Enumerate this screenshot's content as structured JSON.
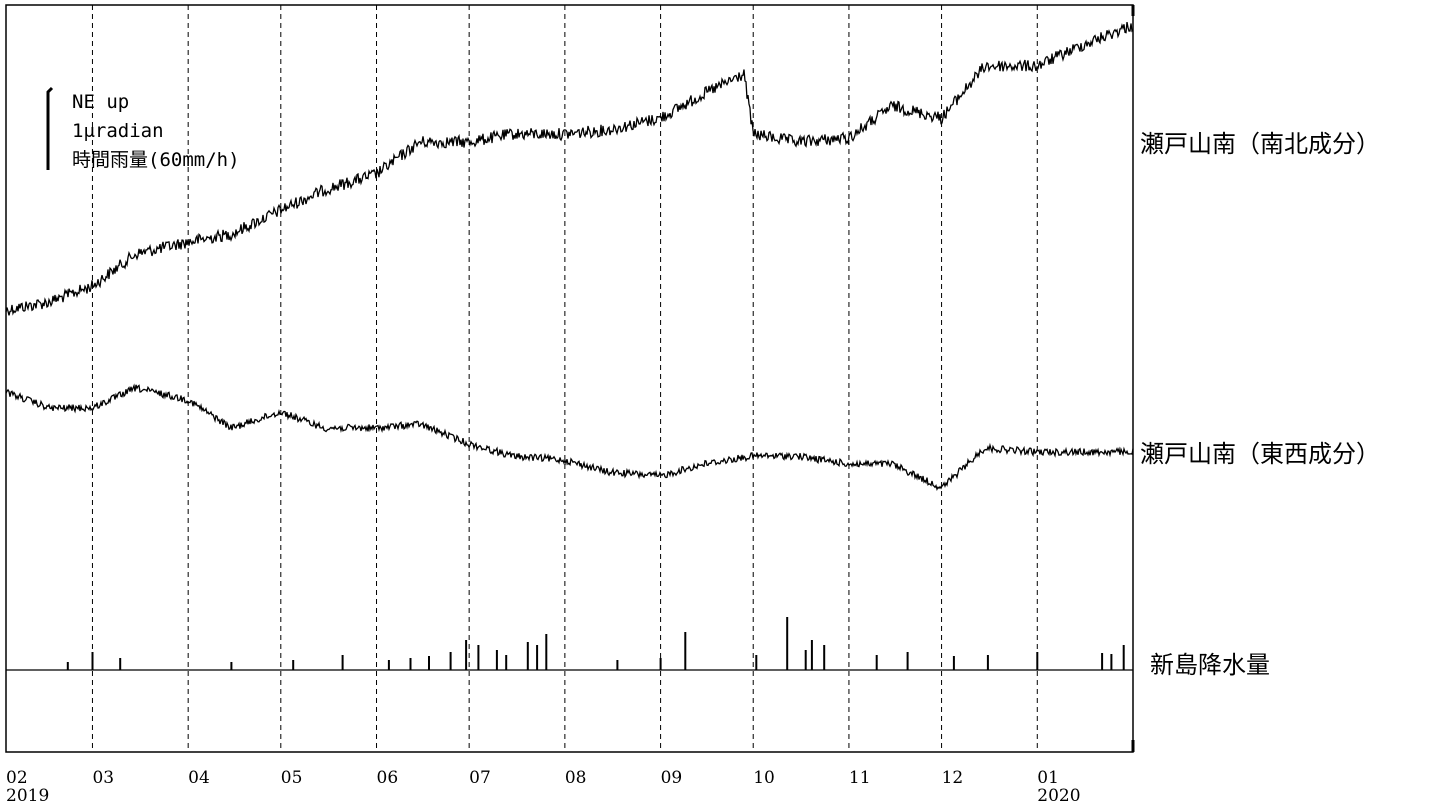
{
  "chart_data": {
    "type": "line",
    "legend": {
      "direction": "NE up",
      "scale": "1μradian",
      "rain_scale": "時間雨量(60mm/h)"
    },
    "x_ticks": [
      {
        "month": "02",
        "year": "2019"
      },
      {
        "month": "03",
        "year": ""
      },
      {
        "month": "04",
        "year": ""
      },
      {
        "month": "05",
        "year": ""
      },
      {
        "month": "06",
        "year": ""
      },
      {
        "month": "07",
        "year": ""
      },
      {
        "month": "08",
        "year": ""
      },
      {
        "month": "09",
        "year": ""
      },
      {
        "month": "10",
        "year": ""
      },
      {
        "month": "11",
        "year": ""
      },
      {
        "month": "12",
        "year": ""
      },
      {
        "month": "01",
        "year": "2020"
      }
    ],
    "grid": "vertical dashed at month boundaries",
    "series": [
      {
        "name": "瀬戸山南（南北成分）",
        "unit": "μradian",
        "x": [
          "2019-02-01",
          "2019-02-15",
          "2019-03-01",
          "2019-03-15",
          "2019-04-01",
          "2019-04-15",
          "2019-05-01",
          "2019-05-15",
          "2019-06-01",
          "2019-06-15",
          "2019-07-01",
          "2019-07-15",
          "2019-08-01",
          "2019-08-15",
          "2019-09-01",
          "2019-09-15",
          "2019-09-28",
          "2019-10-01",
          "2019-10-15",
          "2019-11-01",
          "2019-11-15",
          "2019-12-01",
          "2019-12-15",
          "2020-01-01",
          "2020-01-15",
          "2020-01-31"
        ],
        "values": [
          0.0,
          0.1,
          0.3,
          0.7,
          0.85,
          0.95,
          1.25,
          1.5,
          1.7,
          2.1,
          2.1,
          2.2,
          2.2,
          2.25,
          2.4,
          2.7,
          2.95,
          2.2,
          2.1,
          2.15,
          2.55,
          2.4,
          3.05,
          3.05,
          3.3,
          3.55
        ]
      },
      {
        "name": "瀬戸山南（東西成分）",
        "unit": "μradian",
        "x": [
          "2019-02-01",
          "2019-02-15",
          "2019-03-01",
          "2019-03-15",
          "2019-04-01",
          "2019-04-15",
          "2019-05-01",
          "2019-05-15",
          "2019-06-01",
          "2019-06-15",
          "2019-07-01",
          "2019-07-15",
          "2019-08-01",
          "2019-08-15",
          "2019-09-01",
          "2019-09-15",
          "2019-10-01",
          "2019-10-15",
          "2019-11-01",
          "2019-11-15",
          "2019-12-01",
          "2019-12-15",
          "2020-01-01",
          "2020-01-15",
          "2020-01-31"
        ],
        "values": [
          0.0,
          -0.2,
          -0.2,
          0.05,
          -0.1,
          -0.45,
          -0.25,
          -0.45,
          -0.45,
          -0.4,
          -0.65,
          -0.8,
          -0.85,
          -1.0,
          -1.05,
          -0.9,
          -0.8,
          -0.8,
          -0.9,
          -0.9,
          -1.2,
          -0.7,
          -0.75,
          -0.75,
          -0.75
        ]
      }
    ],
    "rain": {
      "name": "新島降水量",
      "unit": "mm/h",
      "x": [
        "2019-02-21",
        "2019-03-01",
        "2019-03-10",
        "2019-04-15",
        "2019-05-05",
        "2019-05-21",
        "2019-06-05",
        "2019-06-12",
        "2019-06-18",
        "2019-06-25",
        "2019-06-30",
        "2019-07-04",
        "2019-07-10",
        "2019-07-13",
        "2019-07-20",
        "2019-07-23",
        "2019-07-26",
        "2019-08-18",
        "2019-09-01",
        "2019-09-09",
        "2019-10-02",
        "2019-10-12",
        "2019-10-18",
        "2019-10-20",
        "2019-10-24",
        "2019-11-10",
        "2019-11-20",
        "2019-12-05",
        "2019-12-16",
        "2020-01-01",
        "2020-01-22",
        "2020-01-25",
        "2020-01-29"
      ],
      "values": [
        8,
        18,
        12,
        8,
        10,
        15,
        10,
        12,
        14,
        18,
        30,
        25,
        20,
        15,
        28,
        25,
        36,
        10,
        12,
        38,
        15,
        53,
        20,
        30,
        25,
        15,
        18,
        14,
        15,
        18,
        17,
        16,
        25
      ]
    }
  },
  "labels": {
    "ns": "瀬戸山南（南北成分）",
    "ew": "瀬戸山南（東西成分）",
    "rain": "新島降水量"
  }
}
